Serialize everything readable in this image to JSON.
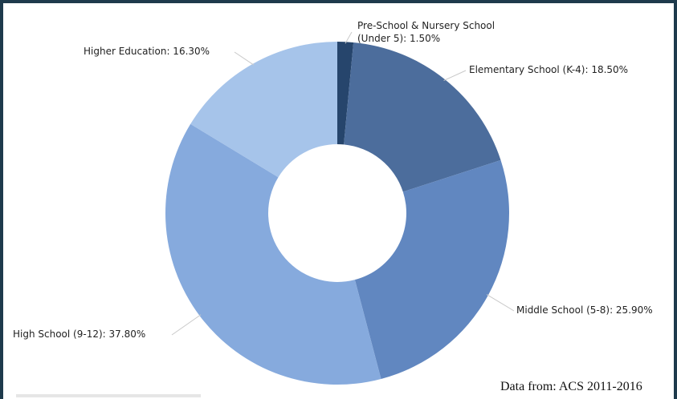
{
  "chart_data": {
    "type": "pie",
    "variant": "donut",
    "slices": [
      {
        "label": "Pre-School & Nursery School (Under 5): 1.50%",
        "name": "Pre-School & Nursery School (Under 5)",
        "value": 1.5,
        "color": "#26456c"
      },
      {
        "label": "Elementary School (K-4): 18.50%",
        "name": "Elementary School (K-4)",
        "value": 18.5,
        "color": "#4c6d9c"
      },
      {
        "label": "Middle School (5-8): 25.90%",
        "name": "Middle School (5-8)",
        "value": 25.9,
        "color": "#6187c0"
      },
      {
        "label": "High School (9-12): 37.80%",
        "name": "High School (9-12)",
        "value": 37.8,
        "color": "#86aadd"
      },
      {
        "label": "Higher Education: 16.30%",
        "name": "Higher Education",
        "value": 16.3,
        "color": "#a6c4ea"
      }
    ],
    "source": "Data from: ACS 2011-2016"
  }
}
